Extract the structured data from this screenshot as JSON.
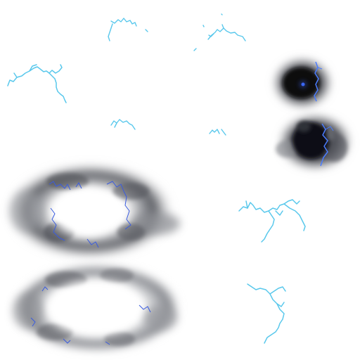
{
  "sprite_sheet": {
    "background_color": "#ffffff",
    "colors": {
      "lightning_light": "#59c8ec",
      "lightning_dark": "#3a5ce0",
      "smoke_dark": "#15161c",
      "smoke_mid": "#5a5c64",
      "smoke_light": "#a9abb0",
      "blast_core": "#ffffff"
    },
    "sprites": [
      {
        "id": "bolt-1",
        "kind": "lightning"
      },
      {
        "id": "bolt-2",
        "kind": "lightning"
      },
      {
        "id": "bolt-3",
        "kind": "lightning"
      },
      {
        "id": "bolt-4",
        "kind": "lightning"
      },
      {
        "id": "bolt-5",
        "kind": "lightning"
      },
      {
        "id": "dark-smoke-1",
        "kind": "smoke-with-lightning"
      },
      {
        "id": "dark-smoke-2",
        "kind": "smoke-with-lightning"
      },
      {
        "id": "blast-ring-1",
        "kind": "explosion-ring"
      },
      {
        "id": "blast-ring-2",
        "kind": "explosion-ring"
      },
      {
        "id": "bolt-6",
        "kind": "lightning"
      },
      {
        "id": "bolt-7",
        "kind": "lightning"
      }
    ]
  }
}
